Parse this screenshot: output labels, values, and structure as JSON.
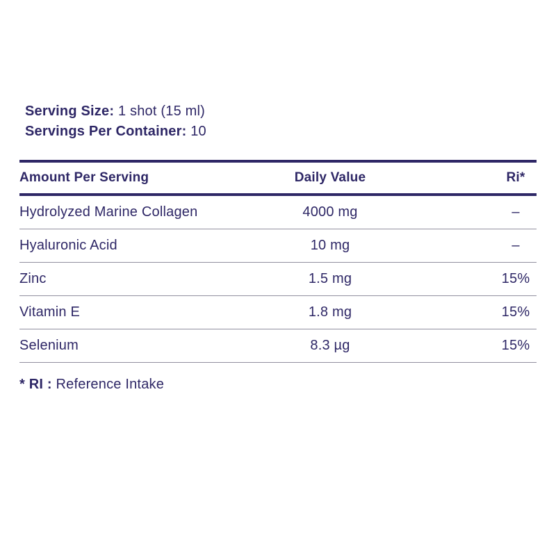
{
  "panel": {
    "serving": {
      "size_label": "Serving Size:",
      "size_value": " 1 shot (15 ml)",
      "per_container_label": "Servings Per Container:",
      "per_container_value": " 10"
    },
    "table": {
      "headers": {
        "amount": "Amount Per Serving",
        "daily_value": "Daily Value",
        "ri": "Ri*"
      },
      "rows": [
        {
          "name": "Hydrolyzed Marine Collagen",
          "amount": "4000 mg",
          "ri": "–"
        },
        {
          "name": "Hyaluronic Acid",
          "amount": "10 mg",
          "ri": "–"
        },
        {
          "name": "Zinc",
          "amount": "1.5 mg",
          "ri": "15%"
        },
        {
          "name": "Vitamin E",
          "amount": "1.8 mg",
          "ri": "15%"
        },
        {
          "name": "Selenium",
          "amount": "8.3 µg",
          "ri": "15%"
        }
      ]
    },
    "footnote": {
      "label": "* RI :",
      "value": " Reference Intake"
    },
    "colors": {
      "text": "#2e2766",
      "thick_rule": "#2e2766",
      "thin_rule": "#908e9e",
      "background": "#ffffff"
    }
  }
}
